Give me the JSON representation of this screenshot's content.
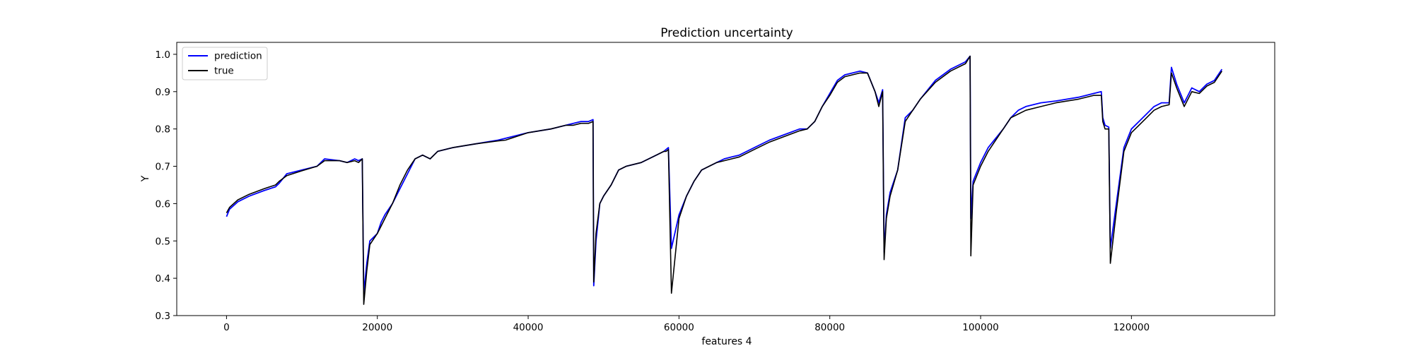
{
  "chart_data": {
    "type": "line",
    "title": "Prediction uncertainty",
    "xlabel": "features 4",
    "ylabel": "Y",
    "xlim": [
      -6600,
      139000
    ],
    "ylim": [
      0.3,
      1.032
    ],
    "xticks": [
      0,
      20000,
      40000,
      60000,
      80000,
      100000,
      120000
    ],
    "xtick_labels": [
      "0",
      "20000",
      "40000",
      "60000",
      "80000",
      "100000",
      "120000"
    ],
    "yticks": [
      0.3,
      0.4,
      0.5,
      0.6,
      0.7,
      0.8,
      0.9,
      1.0
    ],
    "ytick_labels": [
      "0.3",
      "0.4",
      "0.5",
      "0.6",
      "0.7",
      "0.8",
      "0.9",
      "1.0"
    ],
    "grid": false,
    "legend_position": "top-left",
    "series": [
      {
        "name": "prediction",
        "color": "#0000ff",
        "x": [
          0,
          400,
          1500,
          3000,
          5000,
          6500,
          7000,
          8000,
          10000,
          12000,
          13000,
          15000,
          16000,
          17000,
          17500,
          18000,
          18200,
          18600,
          19000,
          20000,
          20500,
          21000,
          22000,
          23000,
          24000,
          25000,
          26000,
          27000,
          28000,
          30000,
          33000,
          36000,
          37000,
          40000,
          43000,
          45000,
          46000,
          47000,
          48000,
          48600,
          48700,
          49000,
          49500,
          50000,
          51000,
          52000,
          53000,
          55000,
          57000,
          58000,
          58300,
          58600,
          59000,
          60000,
          61000,
          62000,
          63000,
          64000,
          65000,
          66000,
          67000,
          68000,
          70000,
          72000,
          74000,
          76000,
          77000,
          78000,
          79000,
          80000,
          81000,
          82000,
          84000,
          85000,
          86000,
          86500,
          87000,
          87200,
          87500,
          88000,
          89000,
          90000,
          91000,
          92000,
          94000,
          96000,
          98000,
          98600,
          98700,
          99000,
          100000,
          101000,
          103000,
          104000,
          105000,
          106000,
          108000,
          110000,
          113000,
          115000,
          116000,
          116200,
          116500,
          117000,
          117200,
          118000,
          119000,
          120000,
          121000,
          122000,
          123000,
          124000,
          125000,
          125300,
          126000,
          127000,
          128000,
          129000,
          130000,
          131000,
          132000
        ],
        "y": [
          0.565,
          0.585,
          0.605,
          0.62,
          0.635,
          0.645,
          0.655,
          0.68,
          0.69,
          0.7,
          0.72,
          0.715,
          0.71,
          0.72,
          0.715,
          0.72,
          0.36,
          0.44,
          0.5,
          0.52,
          0.55,
          0.57,
          0.6,
          0.64,
          0.68,
          0.72,
          0.73,
          0.72,
          0.74,
          0.75,
          0.76,
          0.77,
          0.775,
          0.79,
          0.8,
          0.81,
          0.815,
          0.82,
          0.82,
          0.825,
          0.38,
          0.5,
          0.6,
          0.62,
          0.65,
          0.69,
          0.7,
          0.71,
          0.73,
          0.74,
          0.745,
          0.75,
          0.48,
          0.57,
          0.62,
          0.66,
          0.69,
          0.7,
          0.71,
          0.72,
          0.725,
          0.73,
          0.75,
          0.77,
          0.785,
          0.8,
          0.8,
          0.82,
          0.86,
          0.895,
          0.93,
          0.945,
          0.955,
          0.95,
          0.9,
          0.87,
          0.905,
          0.47,
          0.57,
          0.63,
          0.69,
          0.83,
          0.85,
          0.88,
          0.93,
          0.96,
          0.98,
          0.995,
          0.56,
          0.66,
          0.71,
          0.75,
          0.8,
          0.83,
          0.85,
          0.86,
          0.87,
          0.875,
          0.885,
          0.895,
          0.9,
          0.83,
          0.81,
          0.805,
          0.48,
          0.6,
          0.75,
          0.8,
          0.82,
          0.84,
          0.86,
          0.87,
          0.87,
          0.965,
          0.92,
          0.87,
          0.91,
          0.9,
          0.92,
          0.93,
          0.96
        ]
      },
      {
        "name": "true",
        "color": "#000000",
        "x": [
          0,
          400,
          1500,
          3000,
          5000,
          6500,
          7000,
          8000,
          10000,
          12000,
          13000,
          15000,
          16000,
          17000,
          17500,
          18000,
          18200,
          18600,
          19000,
          20000,
          20500,
          21000,
          22000,
          23000,
          24000,
          25000,
          26000,
          27000,
          28000,
          30000,
          33000,
          36000,
          37000,
          40000,
          43000,
          45000,
          46000,
          47000,
          48000,
          48600,
          48700,
          49000,
          49500,
          50000,
          51000,
          52000,
          53000,
          55000,
          57000,
          58000,
          58300,
          58600,
          59000,
          60000,
          61000,
          62000,
          63000,
          64000,
          65000,
          66000,
          67000,
          68000,
          70000,
          72000,
          74000,
          76000,
          77000,
          78000,
          79000,
          80000,
          81000,
          82000,
          84000,
          85000,
          86000,
          86500,
          87000,
          87200,
          87500,
          88000,
          89000,
          90000,
          91000,
          92000,
          94000,
          96000,
          98000,
          98600,
          98700,
          99000,
          100000,
          101000,
          103000,
          104000,
          105000,
          106000,
          108000,
          110000,
          113000,
          115000,
          116000,
          116200,
          116500,
          117000,
          117200,
          118000,
          119000,
          120000,
          121000,
          122000,
          123000,
          124000,
          125000,
          125300,
          126000,
          127000,
          128000,
          129000,
          130000,
          131000,
          132000
        ],
        "y": [
          0.575,
          0.59,
          0.61,
          0.625,
          0.64,
          0.65,
          0.66,
          0.675,
          0.688,
          0.7,
          0.715,
          0.715,
          0.71,
          0.715,
          0.71,
          0.72,
          0.33,
          0.42,
          0.49,
          0.52,
          0.54,
          0.56,
          0.6,
          0.65,
          0.69,
          0.72,
          0.73,
          0.72,
          0.74,
          0.75,
          0.76,
          0.768,
          0.77,
          0.79,
          0.8,
          0.81,
          0.81,
          0.815,
          0.815,
          0.82,
          0.39,
          0.52,
          0.6,
          0.62,
          0.65,
          0.69,
          0.7,
          0.71,
          0.73,
          0.74,
          0.74,
          0.745,
          0.36,
          0.56,
          0.62,
          0.66,
          0.69,
          0.7,
          0.71,
          0.715,
          0.72,
          0.725,
          0.745,
          0.765,
          0.78,
          0.795,
          0.8,
          0.82,
          0.86,
          0.89,
          0.925,
          0.94,
          0.95,
          0.95,
          0.9,
          0.86,
          0.9,
          0.45,
          0.56,
          0.62,
          0.69,
          0.82,
          0.85,
          0.88,
          0.925,
          0.955,
          0.975,
          0.995,
          0.46,
          0.65,
          0.7,
          0.74,
          0.8,
          0.83,
          0.84,
          0.85,
          0.86,
          0.87,
          0.88,
          0.89,
          0.89,
          0.82,
          0.8,
          0.8,
          0.44,
          0.58,
          0.74,
          0.79,
          0.81,
          0.83,
          0.85,
          0.86,
          0.865,
          0.95,
          0.91,
          0.86,
          0.9,
          0.895,
          0.915,
          0.925,
          0.955
        ]
      }
    ]
  }
}
